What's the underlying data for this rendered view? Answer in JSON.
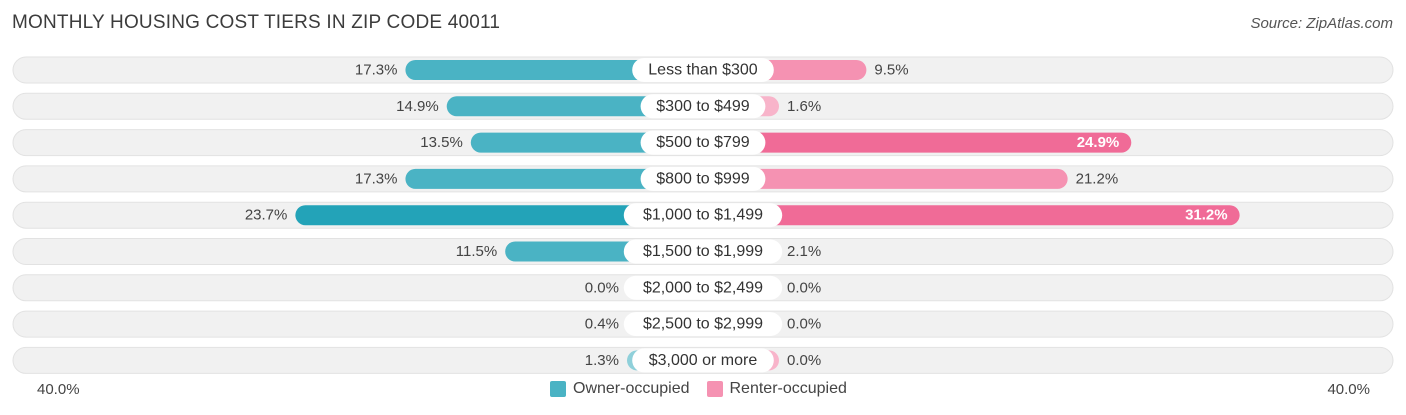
{
  "header": {
    "title": "MONTHLY HOUSING COST TIERS IN ZIP CODE 40011",
    "source": "Source: ZipAtlas.com"
  },
  "colors": {
    "owner": "#4ab3c4",
    "owner_strong": "#23a3b8",
    "owner_light": "#8fd0da",
    "renter": "#f592b2",
    "renter_strong": "#f06b97",
    "renter_light": "#f8b4ca",
    "track": "#f1f1f1"
  },
  "chart_data": {
    "type": "bar",
    "orientation": "diverging-horizontal",
    "categories": [
      "Less than $300",
      "$300 to $499",
      "$500 to $799",
      "$800 to $999",
      "$1,000 to $1,499",
      "$1,500 to $1,999",
      "$2,000 to $2,499",
      "$2,500 to $2,999",
      "$3,000 or more"
    ],
    "series": [
      {
        "name": "Owner-occupied",
        "values": [
          17.3,
          14.9,
          13.5,
          17.3,
          23.7,
          11.5,
          0.0,
          0.4,
          1.3
        ]
      },
      {
        "name": "Renter-occupied",
        "values": [
          9.5,
          1.6,
          24.9,
          21.2,
          31.2,
          2.1,
          0.0,
          0.0,
          0.0
        ]
      }
    ],
    "value_labels": {
      "owner": [
        "17.3%",
        "14.9%",
        "13.5%",
        "17.3%",
        "23.7%",
        "11.5%",
        "0.0%",
        "0.4%",
        "1.3%"
      ],
      "renter": [
        "9.5%",
        "1.6%",
        "24.9%",
        "21.2%",
        "31.2%",
        "2.1%",
        "0.0%",
        "0.0%",
        "0.0%"
      ]
    },
    "xlim": [
      -40,
      40
    ],
    "axis_labels": {
      "left": "40.0%",
      "right": "40.0%"
    },
    "legend_position": "bottom-center",
    "grid": false
  }
}
